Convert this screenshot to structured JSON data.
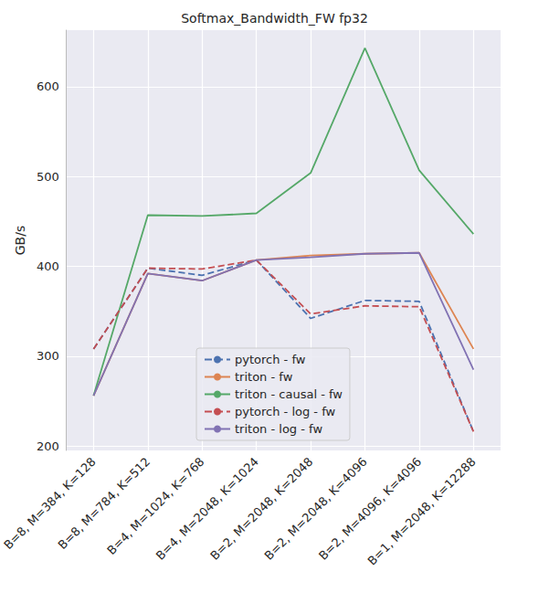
{
  "chart_data": {
    "type": "line",
    "title": "Softmax_Bandwidth_FW fp32",
    "y_label": "GB/s",
    "categories": [
      "B=8, M=384, K=128",
      "B=8, M=784, K=512",
      "B=4, M=1024, K=768",
      "B=4, M=2048, K=1024",
      "B=2, M=2048, K=2048",
      "B=2, M=2048, K=4096",
      "B=2, M=4096, K=4096",
      "B=1, M=2048, K=12288"
    ],
    "series": [
      {
        "name": "pytorch - fw",
        "color": "#4c72b0",
        "line_style": "dashed",
        "values": [
          308,
          398,
          390,
          407,
          342,
          362,
          361,
          216
        ]
      },
      {
        "name": "triton - fw",
        "color": "#dd8452",
        "line_style": "solid",
        "values": [
          256,
          392,
          384,
          407,
          412,
          414,
          415,
          308
        ]
      },
      {
        "name": "triton - causal - fw",
        "color": "#55a868",
        "line_style": "solid",
        "values": [
          256,
          457,
          456,
          459,
          504,
          643,
          507,
          436
        ]
      },
      {
        "name": "pytorch - log - fw",
        "color": "#c44e52",
        "line_style": "dashed",
        "values": [
          308,
          398,
          397,
          407,
          347,
          356,
          355,
          216
        ]
      },
      {
        "name": "triton - log - fw",
        "color": "#8172b3",
        "line_style": "solid",
        "values": [
          256,
          392,
          384,
          407,
          410,
          414,
          415,
          285
        ]
      }
    ],
    "ylim": [
      195,
      663
    ],
    "yticks": [
      200,
      300,
      400,
      500,
      600
    ],
    "grid": true,
    "legend": "lower center"
  }
}
